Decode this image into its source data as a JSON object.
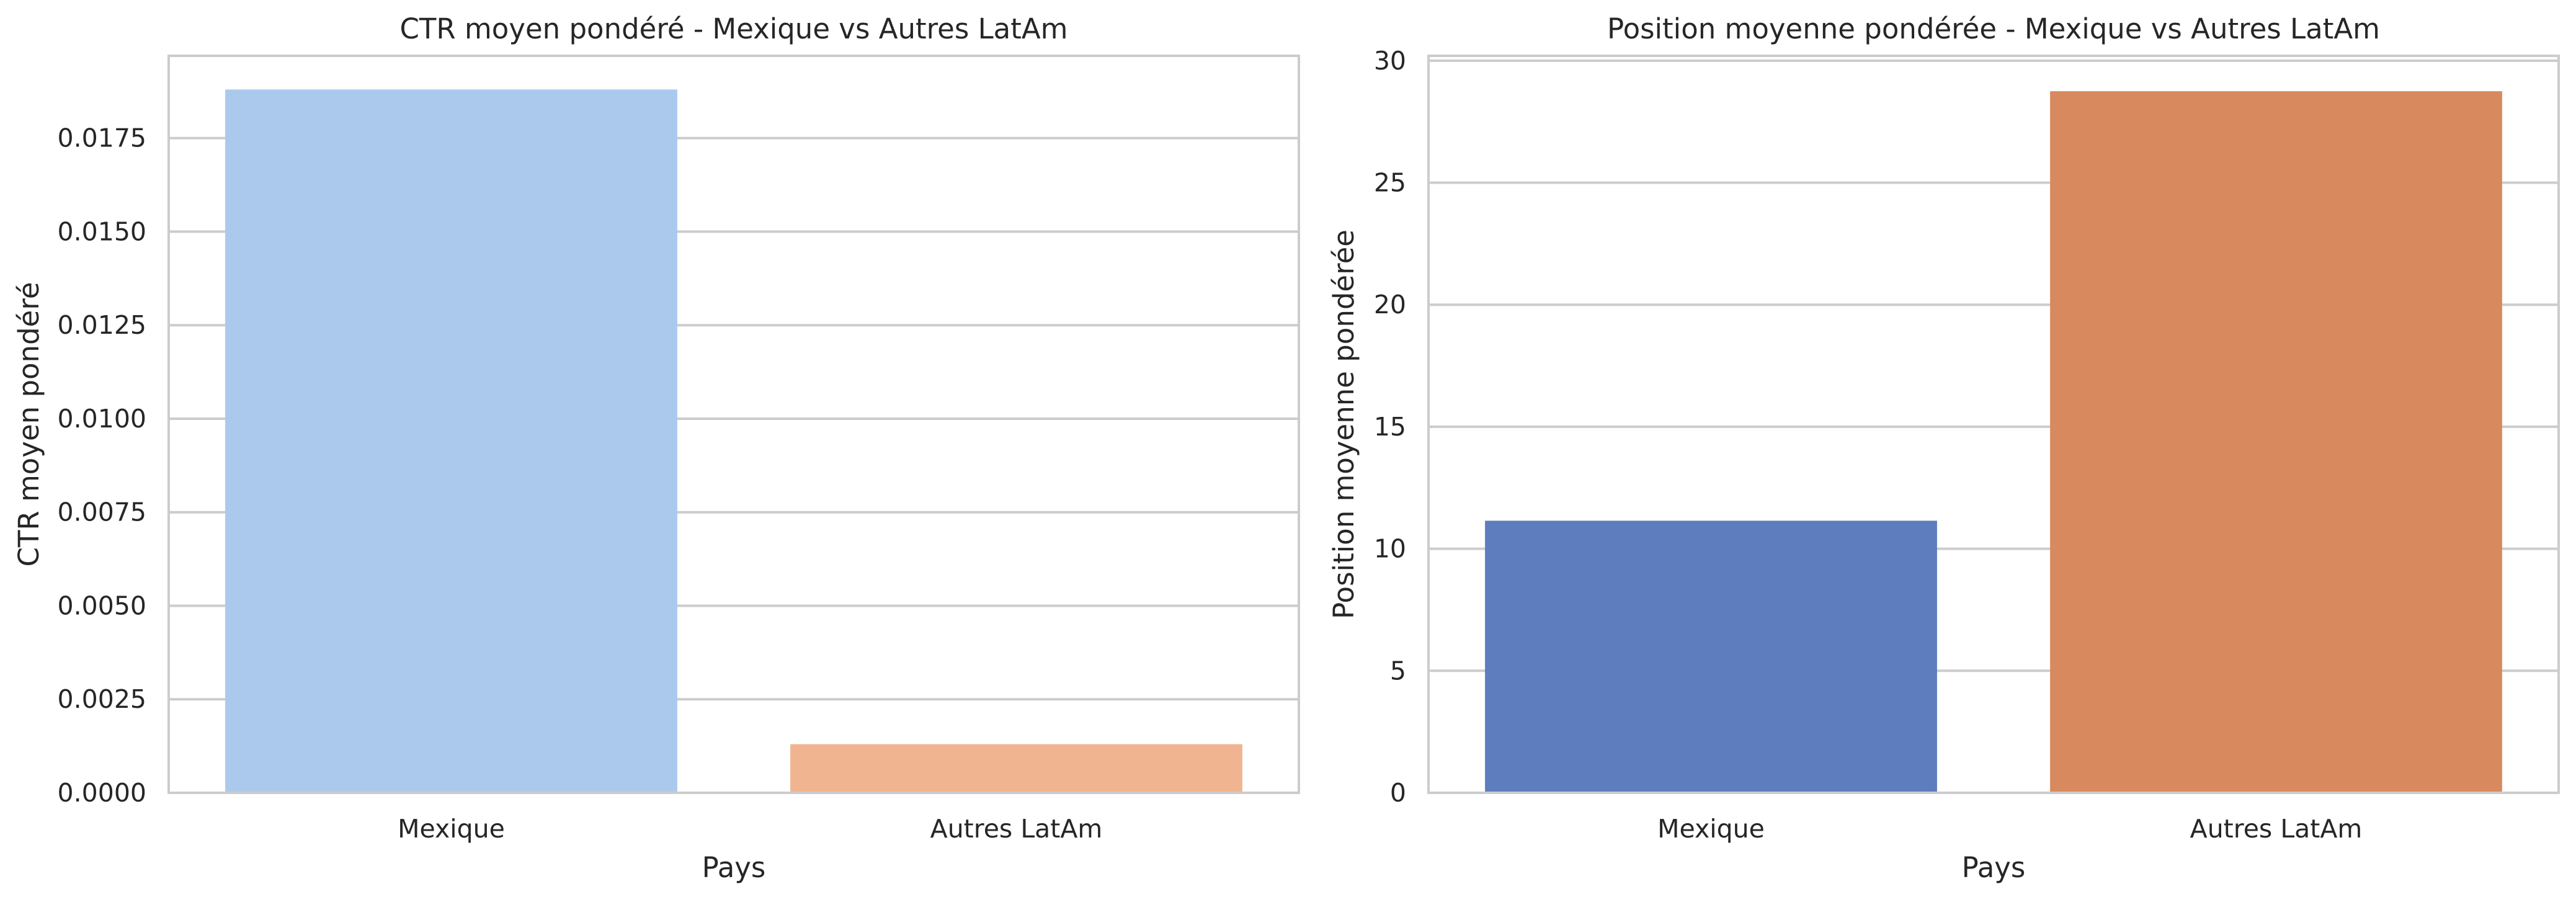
{
  "chart_data": [
    {
      "type": "bar",
      "title": "CTR moyen pondéré - Mexique vs Autres LatAm",
      "xlabel": "Pays",
      "ylabel": "CTR moyen pondéré",
      "categories": [
        "Mexique",
        "Autres LatAm"
      ],
      "values": [
        0.0188,
        0.0013
      ],
      "colors": [
        "#abc9ec",
        "#f0b590"
      ],
      "ylim": [
        0,
        0.0197
      ],
      "yticks": [
        0,
        0.0025,
        0.005,
        0.0075,
        0.01,
        0.0125,
        0.015,
        0.0175
      ],
      "ytick_labels": [
        "0.0000",
        "0.0025",
        "0.0050",
        "0.0075",
        "0.0100",
        "0.0125",
        "0.0150",
        "0.0175"
      ],
      "grid": true
    },
    {
      "type": "bar",
      "title": "Position moyenne pondérée - Mexique vs Autres LatAm",
      "xlabel": "Pays",
      "ylabel": "Position moyenne pondérée",
      "categories": [
        "Mexique",
        "Autres LatAm"
      ],
      "values": [
        11.15,
        28.75
      ],
      "colors": [
        "#5d7dbf",
        "#d88a5e"
      ],
      "ylim": [
        0,
        30.2
      ],
      "yticks": [
        0,
        5,
        10,
        15,
        20,
        25,
        30
      ],
      "ytick_labels": [
        "0",
        "5",
        "10",
        "15",
        "20",
        "25",
        "30"
      ],
      "grid": true
    }
  ]
}
